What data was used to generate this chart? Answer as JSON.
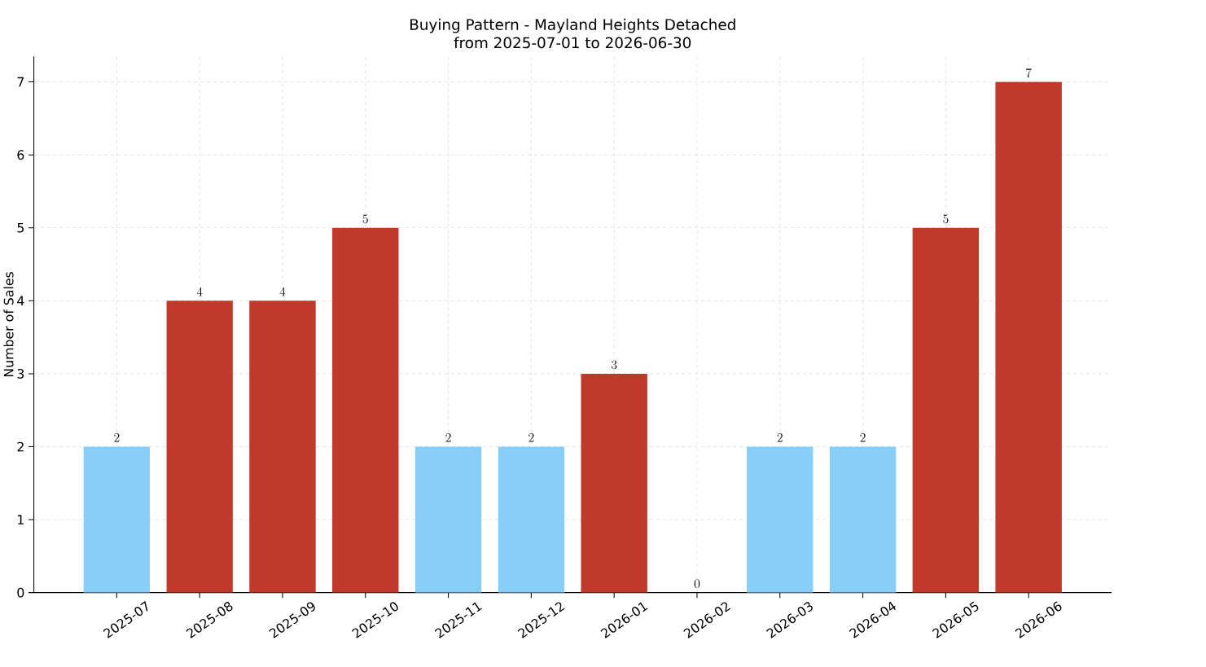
{
  "chart_data": {
    "type": "bar",
    "title": "Buying Pattern - Mayland Heights Detached",
    "subtitle": "from 2025-07-01 to 2026-06-30",
    "ylabel": "Number of Sales",
    "categories": [
      "2025-07",
      "2025-08",
      "2025-09",
      "2025-10",
      "2025-11",
      "2025-12",
      "2026-01",
      "2026-02",
      "2026-03",
      "2026-04",
      "2026-05",
      "2026-06"
    ],
    "values": [
      2,
      4,
      4,
      5,
      2,
      2,
      3,
      0,
      2,
      2,
      5,
      7
    ],
    "colors": [
      "#87cefa",
      "#c0392b",
      "#c0392b",
      "#c0392b",
      "#87cefa",
      "#87cefa",
      "#c0392b",
      "#87cefa",
      "#87cefa",
      "#87cefa",
      "#c0392b",
      "#c0392b"
    ],
    "ylim": [
      0,
      7.35
    ],
    "yticks": [
      0,
      1,
      2,
      3,
      4,
      5,
      6,
      7
    ],
    "grid": true,
    "data_labels": true
  }
}
